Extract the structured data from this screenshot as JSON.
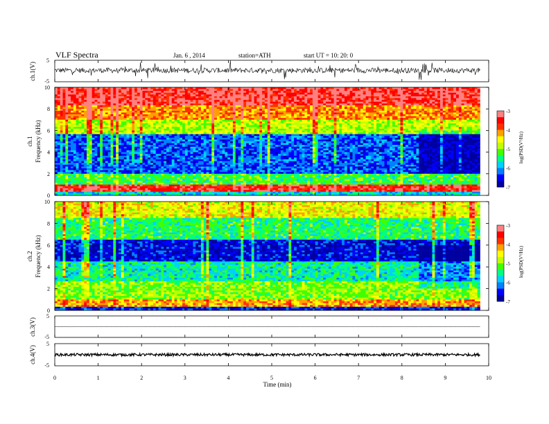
{
  "header": {
    "title": "VLF Spectra",
    "date": "Jan. 6 , 2014",
    "station": "station=ATH",
    "start": "start UT =  10: 20: 0"
  },
  "colors": {
    "colormap": [
      "#000000",
      "#0000a0",
      "#0000ff",
      "#0080ff",
      "#00d0ff",
      "#00ff80",
      "#40ff00",
      "#c0ff00",
      "#ffff00",
      "#ffa000",
      "#ff3000",
      "#ff0000",
      "#ff8080",
      "#ffffff"
    ],
    "waveform": "#000000"
  },
  "chart_data": [
    {
      "type": "line",
      "ylabel": "ch.1(V)",
      "ylim": [
        -5,
        5
      ],
      "yticks": [
        "5",
        "-5"
      ],
      "xlim": [
        0,
        10
      ],
      "description_values": {
        "mean": 0.3,
        "noise_amplitude": 1.2,
        "spike_amplitude": 4
      },
      "data_end_min": 9.8
    },
    {
      "type": "heatmap",
      "ylabel": "Frequency (kHz)",
      "channel_label": "ch.1",
      "ylim": [
        0,
        10
      ],
      "yticks": [
        "0",
        "2",
        "4",
        "6",
        "8",
        "10"
      ],
      "xlim": [
        0,
        10
      ],
      "data_end_min": 9.8,
      "colorbar": {
        "label": "log(PSD(V²/Hz)",
        "range": [
          -7,
          -3
        ],
        "ticks": [
          "-3",
          "-4",
          "-5",
          "-6",
          "-7"
        ]
      },
      "bands_khz": [
        {
          "f": [
            0,
            0.3
          ],
          "level": -5.8
        },
        {
          "f": [
            0.3,
            1.0
          ],
          "level": -3.5
        },
        {
          "f": [
            1.0,
            2.0
          ],
          "level": -5.3
        },
        {
          "f": [
            2.0,
            5.6
          ],
          "level": -6.3
        },
        {
          "f": [
            5.6,
            7.0
          ],
          "level": -4.8
        },
        {
          "f": [
            7.0,
            8.4
          ],
          "level": -4.1
        },
        {
          "f": [
            8.4,
            10.0
          ],
          "level": -3.4
        }
      ],
      "quiet_interval_min": [
        8.4,
        9.8
      ]
    },
    {
      "type": "heatmap",
      "ylabel": "Frequency (kHz)",
      "channel_label": "ch.2",
      "ylim": [
        0,
        10
      ],
      "yticks": [
        "0",
        "2",
        "4",
        "6",
        "8",
        "10"
      ],
      "xlim": [
        0,
        10
      ],
      "data_end_min": 9.8,
      "colorbar": {
        "label": "log(PSD(V²/Hz)",
        "range": [
          -7,
          -3
        ],
        "ticks": [
          "-3",
          "-4",
          "-5",
          "-6",
          "-7"
        ]
      },
      "bands_khz": [
        {
          "f": [
            0,
            0.3
          ],
          "level": -6.5
        },
        {
          "f": [
            0.3,
            1.0
          ],
          "level": -4.2
        },
        {
          "f": [
            1.0,
            2.6
          ],
          "level": -5.0
        },
        {
          "f": [
            2.6,
            4.5
          ],
          "level": -5.6
        },
        {
          "f": [
            4.5,
            6.5
          ],
          "level": -6.6
        },
        {
          "f": [
            6.5,
            8.5
          ],
          "level": -5.4
        },
        {
          "f": [
            8.5,
            10.0
          ],
          "level": -4.6
        }
      ],
      "quiet_interval_min": [
        8.4,
        9.8
      ]
    },
    {
      "type": "line",
      "ylabel": "ch.3(V)",
      "ylim": [
        -5,
        5
      ],
      "yticks": [
        "5",
        "-5"
      ],
      "xlim": [
        0,
        10
      ],
      "data_end_min": 9.8,
      "description_values": {
        "mean": 0.0,
        "noise_amplitude": 0.1
      }
    },
    {
      "type": "line",
      "ylabel": "ch.4(V)",
      "ylim": [
        -5,
        5
      ],
      "yticks": [
        "5",
        "-5"
      ],
      "xlim": [
        0,
        10
      ],
      "data_end_min": 9.8,
      "description_values": {
        "mean": 0.0,
        "noise_amplitude": 0.6
      }
    }
  ],
  "xaxis": {
    "label": "Time (min)",
    "ticks": [
      "0",
      "1",
      "2",
      "3",
      "4",
      "5",
      "6",
      "7",
      "8",
      "9",
      "10"
    ]
  }
}
